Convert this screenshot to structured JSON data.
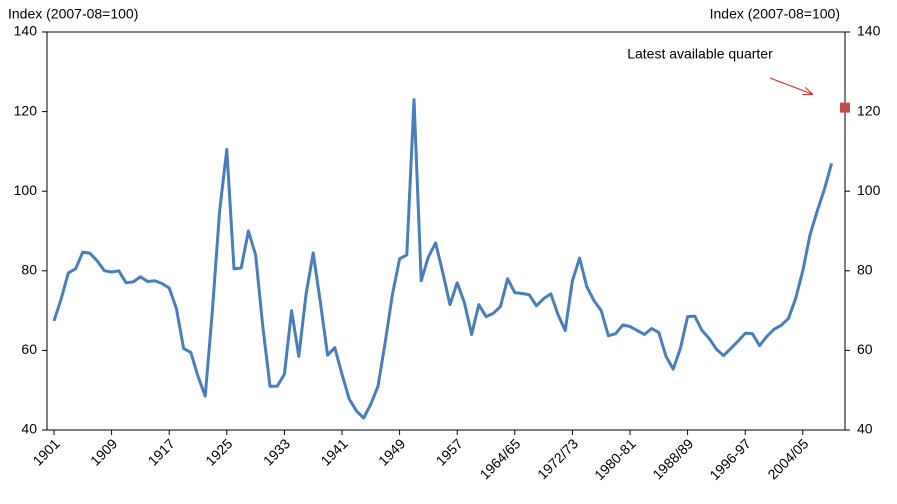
{
  "chart_data": {
    "type": "line",
    "y_label": "Index (2007-08=100)",
    "y2_label": "Index (2007-08=100)",
    "categories": [
      "1901",
      null,
      null,
      null,
      null,
      null,
      null,
      null,
      "1909",
      null,
      null,
      null,
      null,
      null,
      null,
      null,
      "1917",
      null,
      null,
      null,
      null,
      null,
      null,
      null,
      "1925",
      null,
      null,
      null,
      null,
      null,
      null,
      null,
      "1933",
      null,
      null,
      null,
      null,
      null,
      null,
      null,
      "1941",
      null,
      null,
      null,
      null,
      null,
      null,
      null,
      "1949",
      null,
      null,
      null,
      null,
      null,
      null,
      null,
      "1957",
      null,
      null,
      null,
      null,
      null,
      null,
      null,
      "1964/65",
      null,
      null,
      null,
      null,
      null,
      null,
      null,
      "1972/73",
      null,
      null,
      null,
      null,
      null,
      null,
      null,
      "1980-81",
      null,
      null,
      null,
      null,
      null,
      null,
      null,
      "1988/89",
      null,
      null,
      null,
      null,
      null,
      null,
      null,
      "1996-97",
      null,
      null,
      null,
      null,
      null,
      null,
      null,
      "2004/05",
      null,
      null,
      null,
      null
    ],
    "series": [
      {
        "color": "#4a7ebb",
        "values": [
          67.4,
          73,
          79.5,
          80.5,
          84.7,
          84.4,
          82.5,
          80,
          79.7,
          80,
          77,
          77.2,
          78.5,
          77.3,
          77.5,
          76.8,
          75.7,
          70.5,
          60.5,
          59.5,
          53.5,
          48.5,
          70,
          95,
          110.5,
          80.5,
          80.7,
          90,
          84,
          66,
          51,
          51,
          54,
          70,
          58.5,
          74,
          84.5,
          72,
          58.8,
          60.7,
          54,
          47.8,
          44.8,
          43,
          46.5,
          51,
          62,
          74,
          83,
          84,
          123,
          77.5,
          83.5,
          87,
          79.5,
          71.5,
          77,
          72,
          64,
          71.5,
          68.5,
          69.3,
          71,
          78,
          74.5,
          74.3,
          74,
          71.2,
          73,
          74.2,
          69,
          65,
          77.5,
          83.2,
          76,
          72.5,
          70,
          63.7,
          64.2,
          66.4,
          66,
          65,
          64,
          65.5,
          64.5,
          58.5,
          55.3,
          60.5,
          68.5,
          68.6,
          65,
          63,
          60.3,
          58.7,
          60.5,
          62.3,
          64.3,
          64.2,
          61.2,
          63.5,
          65.3,
          66.3,
          68,
          73,
          80,
          89,
          95,
          100.5,
          107
        ]
      }
    ],
    "latest": {
      "label": "Latest available quarter",
      "value": 121,
      "color": "#c0504d"
    },
    "ylim": [
      40,
      140
    ],
    "yticks": [
      40,
      60,
      80,
      100,
      120,
      140
    ],
    "y2lim": [
      40,
      140
    ],
    "y2ticks": [
      40,
      60,
      80,
      100,
      120,
      140
    ]
  }
}
